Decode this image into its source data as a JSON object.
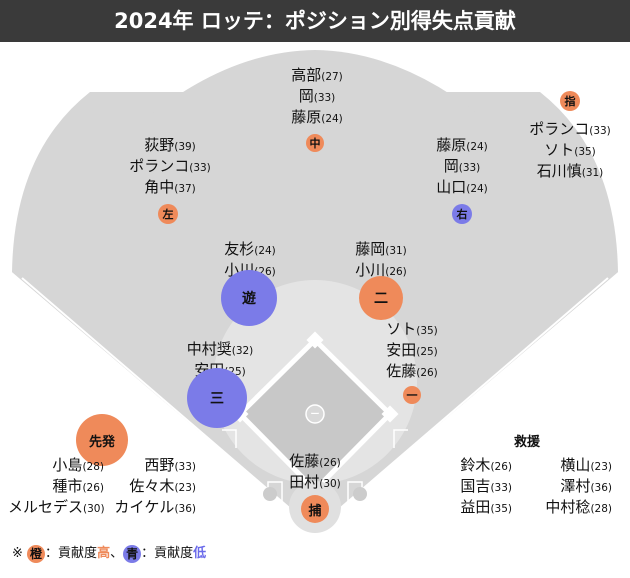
{
  "title": "2024年 ロッテ：ポジション別得失点貢献",
  "colors": {
    "high": "#ef8a5a",
    "low": "#6a6aea",
    "field": "#d6d6d6",
    "infield": "#e2e2e2",
    "header_bg": "#3a3a3a"
  },
  "positions": {
    "center": {
      "badge": "中",
      "players": [
        {
          "name": "高部",
          "score": "(27)"
        },
        {
          "name": "岡",
          "score": "(33)"
        },
        {
          "name": "藤原",
          "score": "(24)"
        }
      ]
    },
    "left": {
      "badge": "左",
      "players": [
        {
          "name": "荻野",
          "score": "(39)"
        },
        {
          "name": "ポランコ",
          "score": "(33)"
        },
        {
          "name": "角中",
          "score": "(37)"
        }
      ]
    },
    "right": {
      "badge": "右",
      "players": [
        {
          "name": "藤原",
          "score": "(24)"
        },
        {
          "name": "岡",
          "score": "(33)"
        },
        {
          "name": "山口",
          "score": "(24)"
        }
      ]
    },
    "dh": {
      "badge": "指",
      "players": [
        {
          "name": "ポランコ",
          "score": "(33)"
        },
        {
          "name": "ソト",
          "score": "(35)"
        },
        {
          "name": "石川慎",
          "score": "(31)"
        }
      ]
    },
    "shortstop": {
      "badge": "遊",
      "players": [
        {
          "name": "友杉",
          "score": "(24)"
        },
        {
          "name": "小川",
          "score": "(26)"
        }
      ]
    },
    "second": {
      "badge": "二",
      "players": [
        {
          "name": "藤岡",
          "score": "(31)"
        },
        {
          "name": "小川",
          "score": "(26)"
        }
      ]
    },
    "first": {
      "badge": "一",
      "players": [
        {
          "name": "ソト",
          "score": "(35)"
        },
        {
          "name": "安田",
          "score": "(25)"
        },
        {
          "name": "佐藤",
          "score": "(26)"
        }
      ]
    },
    "third": {
      "badge": "三",
      "players": [
        {
          "name": "中村奨",
          "score": "(32)"
        },
        {
          "name": "安田",
          "score": "(25)"
        }
      ]
    },
    "catcher": {
      "badge": "捕",
      "players": [
        {
          "name": "佐藤",
          "score": "(26)"
        },
        {
          "name": "田村",
          "score": "(30)"
        }
      ]
    },
    "pitcher": {
      "badge": "ー"
    }
  },
  "starters": {
    "badge": "先発",
    "col1": [
      {
        "name": "小島",
        "score": "(28)"
      },
      {
        "name": "種市",
        "score": "(26)"
      },
      {
        "name": "メルセデス",
        "score": "(30)"
      }
    ],
    "col2": [
      {
        "name": "西野",
        "score": "(33)"
      },
      {
        "name": "佐々木",
        "score": "(23)"
      },
      {
        "name": "カイケル",
        "score": "(36)"
      }
    ]
  },
  "relievers": {
    "label": "救援",
    "col1": [
      {
        "name": "鈴木",
        "score": "(26)"
      },
      {
        "name": "国吉",
        "score": "(33)"
      },
      {
        "name": "益田",
        "score": "(35)"
      }
    ],
    "col2": [
      {
        "name": "横山",
        "score": "(23)"
      },
      {
        "name": "澤村",
        "score": "(36)"
      },
      {
        "name": "中村稔",
        "score": "(28)"
      }
    ]
  },
  "legend": {
    "prefix": "※",
    "orange_badge": "橙",
    "text1": "：貢献度",
    "high_word": "高",
    "sep": "、",
    "blue_badge": "青",
    "text2": "：貢献度",
    "low_word": "低"
  }
}
